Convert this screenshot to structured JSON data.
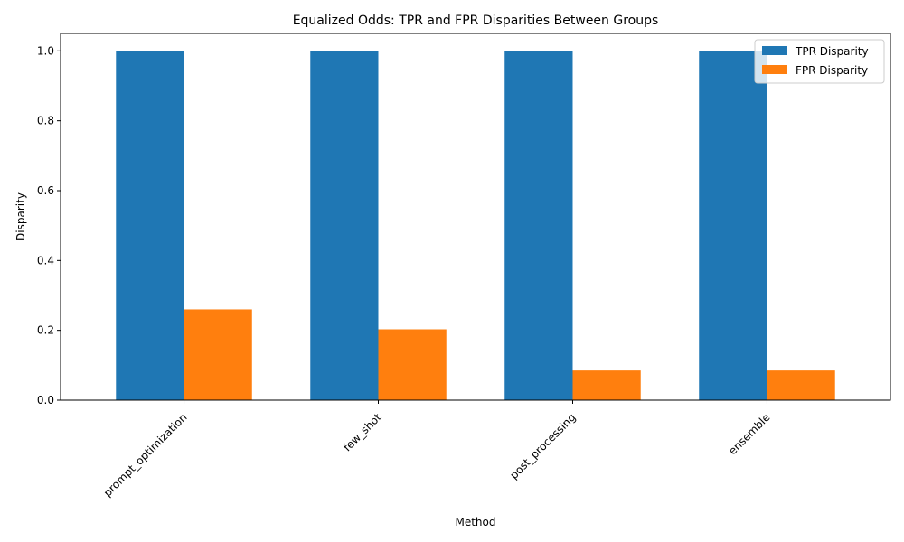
{
  "chart_data": {
    "type": "bar",
    "title": "Equalized Odds: TPR and FPR Disparities Between Groups",
    "xlabel": "Method",
    "ylabel": "Disparity",
    "categories": [
      "prompt_optimization",
      "few_shot",
      "post_processing",
      "ensemble"
    ],
    "series": [
      {
        "name": "TPR Disparity",
        "values": [
          1.0,
          1.0,
          1.0,
          1.0
        ],
        "color": "#1f77b4"
      },
      {
        "name": "FPR Disparity",
        "values": [
          0.26,
          0.203,
          0.085,
          0.085
        ],
        "color": "#ff7f0e"
      }
    ],
    "ylim": [
      0,
      1.05
    ],
    "yticks": [
      "0.0",
      "0.2",
      "0.4",
      "0.6",
      "0.8",
      "1.0"
    ],
    "grid": false,
    "legend": "upper right",
    "xtick_rotation": 45
  }
}
